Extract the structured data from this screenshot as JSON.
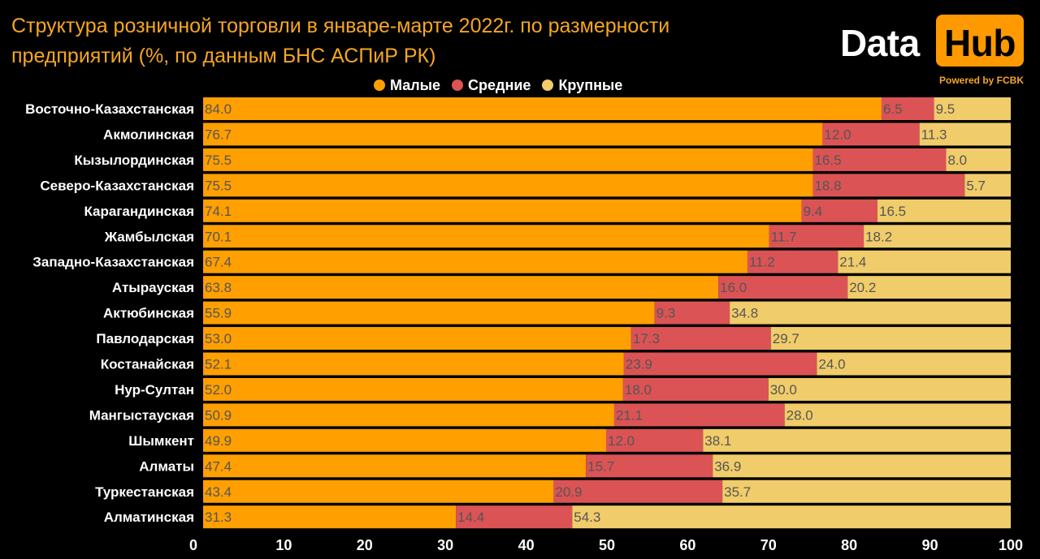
{
  "title_line1": "Структура розничной торговли в январе-марте 2022г. по размерности",
  "title_line2": "предприятий (%, по данным БНС АСПиР РК)",
  "logo": {
    "data": "Data",
    "hub": "Hub",
    "powered": "Powered by FCBK"
  },
  "colors": {
    "small": "#ff9f00",
    "medium": "#db5355",
    "large": "#f0cc6a",
    "title": "#f5a623",
    "background": "#000000"
  },
  "chart_data": {
    "type": "bar",
    "orientation": "horizontal",
    "stacked": true,
    "categories": [
      "Восточно-Казахстанская",
      "Акмолинская",
      "Кызылординская",
      "Северо-Казахстанская",
      "Карагандинская",
      "Жамбылская",
      "Западно-Казахстанская",
      "Атырауская",
      "Актюбинская",
      "Павлодарская",
      "Костанайская",
      "Нур-Султан",
      "Мангыстауская",
      "Шымкент",
      "Алматы",
      "Туркестанская",
      "Алматинская"
    ],
    "series": [
      {
        "name": "Малые",
        "values": [
          84.0,
          76.7,
          75.5,
          75.5,
          74.1,
          70.1,
          67.4,
          63.8,
          55.9,
          53.0,
          52.1,
          52.0,
          50.9,
          49.9,
          47.4,
          43.4,
          31.3
        ]
      },
      {
        "name": "Средние",
        "values": [
          6.5,
          12.0,
          16.5,
          18.8,
          9.4,
          11.7,
          11.2,
          16.0,
          9.3,
          17.3,
          23.9,
          18.0,
          21.1,
          12.0,
          15.7,
          20.9,
          14.4
        ]
      },
      {
        "name": "Крупные",
        "values": [
          9.5,
          11.3,
          8.0,
          5.7,
          16.5,
          18.2,
          21.4,
          20.2,
          34.8,
          29.7,
          24.0,
          30.0,
          28.0,
          38.1,
          36.9,
          35.7,
          54.3
        ]
      }
    ],
    "value_labels": [
      [
        "84.0",
        "6.5",
        "9.5"
      ],
      [
        "76.7",
        "12.0",
        "11.3"
      ],
      [
        "75.5",
        "16.5",
        "8.0"
      ],
      [
        "75.5",
        "18.8",
        "5.7"
      ],
      [
        "74.1",
        "9.4",
        "16.5"
      ],
      [
        "70.1",
        "11.7",
        "18.2"
      ],
      [
        "67.4",
        "11.2",
        "21.4"
      ],
      [
        "63.8",
        "16.0",
        "20.2"
      ],
      [
        "55.9",
        "9.3",
        "34.8"
      ],
      [
        "53.0",
        "17.3",
        "29.7"
      ],
      [
        "52.1",
        "23.9",
        "24.0"
      ],
      [
        "52.0",
        "18.0",
        "30.0"
      ],
      [
        "50.9",
        "21.1",
        "28.0"
      ],
      [
        "49.9",
        "12.0",
        "38.1"
      ],
      [
        "47.4",
        "15.7",
        "36.9"
      ],
      [
        "43.4",
        "20.9",
        "35.7"
      ],
      [
        "31.3",
        "14.4",
        "54.3"
      ]
    ],
    "xlim": [
      0,
      100
    ],
    "xticks": [
      "0",
      "10",
      "20",
      "30",
      "40",
      "50",
      "60",
      "70",
      "80",
      "90",
      "100"
    ],
    "legend_position": "top-center",
    "grid": false
  }
}
